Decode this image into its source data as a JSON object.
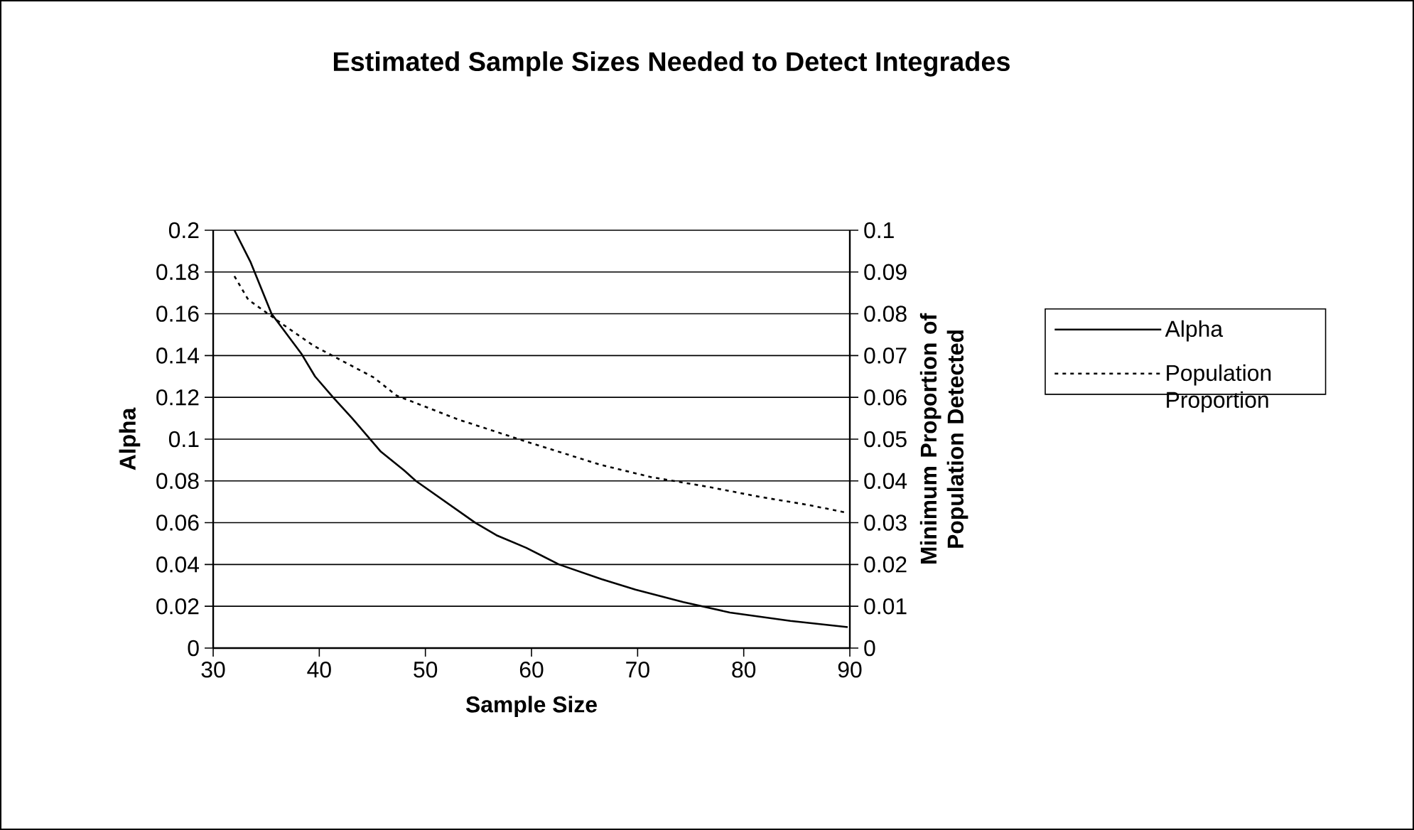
{
  "chart_data": {
    "type": "line",
    "title": "Estimated Sample Sizes Needed to Detect Integrades",
    "xlabel": "Sample Size",
    "ylabel": "Alpha",
    "y2label": "Minimum Proportion of Population Detected",
    "series": [
      {
        "name": "Alpha",
        "color": "#000000",
        "line_style": "solid",
        "x": [
          32,
          33.5,
          35.5,
          38.3,
          39.6,
          41.3,
          43.1,
          45.8,
          48.0,
          49.1,
          54.7,
          56.7,
          59.5,
          62.6,
          66.6,
          69.8,
          74.3,
          78.7,
          84.4,
          89.8
        ],
        "values": [
          0.2,
          0.185,
          0.16,
          0.141,
          0.13,
          0.12,
          0.11,
          0.094,
          0.085,
          0.08,
          0.06,
          0.054,
          0.048,
          0.04,
          0.033,
          0.028,
          0.022,
          0.017,
          0.013,
          0.01
        ]
      },
      {
        "name": "Population Proportion",
        "color": "#000000",
        "line_style": "dotted",
        "axis": "y2",
        "x": [
          32,
          33.3,
          36.6,
          39.5,
          45.1,
          47.3,
          53.1,
          56.5,
          60,
          66.6,
          71.3,
          76.4,
          81.5,
          86.2,
          89.5
        ],
        "values": [
          0.089,
          0.0834,
          0.0774,
          0.0723,
          0.0648,
          0.0604,
          0.0547,
          0.0519,
          0.049,
          0.0438,
          0.0409,
          0.0387,
          0.0362,
          0.0342,
          0.0325
        ]
      }
    ],
    "xlim": [
      30,
      90
    ],
    "xticks": [
      30,
      40,
      50,
      60,
      70,
      80,
      90
    ],
    "ylim": [
      0,
      0.2
    ],
    "yticks": [
      0,
      0.02,
      0.04,
      0.06,
      0.08,
      0.1,
      0.12,
      0.14,
      0.16,
      0.18,
      0.2
    ],
    "y2lim": [
      0,
      0.1
    ],
    "y2ticks": [
      0,
      0.01,
      0.02,
      0.03,
      0.04,
      0.05,
      0.06,
      0.07,
      0.08,
      0.09,
      0.1
    ],
    "grid": "y",
    "legend": "right"
  }
}
